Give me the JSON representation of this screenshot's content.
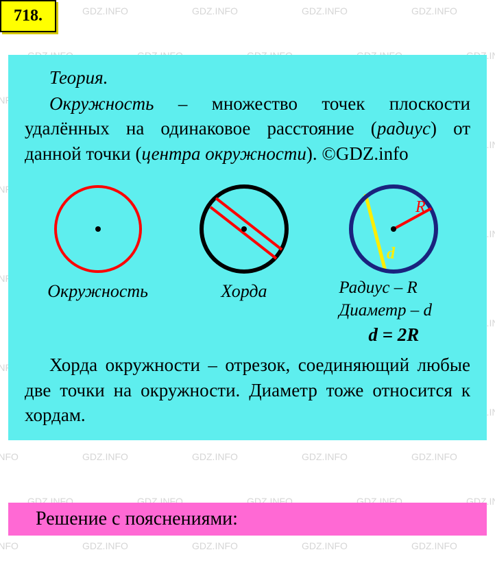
{
  "watermark_text": "GDZ.INFO",
  "problem_number": "718.",
  "theory": {
    "title": "Теория.",
    "definition_prefix": "Окружность",
    "definition_body": " – множество точек плоскости удалённых на одинаковое рас­стояние (",
    "term_radius": "радиус",
    "definition_mid": ") от данной точки (",
    "term_center": "цен­тра окружности",
    "definition_suffix": "). ©GDZ.info"
  },
  "diagrams": {
    "circle1": {
      "label": "Окружность",
      "stroke_color": "#ff0000",
      "stroke_width": 4,
      "radius": 62,
      "center_dot": "#000000"
    },
    "circle2": {
      "label": "Хорда",
      "stroke_color": "#000000",
      "stroke_width": 6,
      "radius": 62,
      "chord_color": "#ff0000",
      "chord_width": 4
    },
    "circle3": {
      "label_line1": "Радиус – R",
      "label_line2": "Диаметр – d",
      "formula": "d = 2R",
      "stroke_color": "#1a237e",
      "stroke_width": 6,
      "radius": 62,
      "radius_line_color": "#ff0000",
      "diameter_line_color": "#ffee00",
      "r_text": "R",
      "d_text": "d"
    }
  },
  "chord_definition": {
    "term": "Хорда",
    "body": " окружности – отрезок, соеди­няющий любые две точки на окружно­сти. Диаметр тоже относится к хордам."
  },
  "solution_title": "Решение с пояснениями:",
  "colors": {
    "panel_bg": "#5eeeee",
    "badge_bg": "#ffff00",
    "solution_bg": "#ff69d4"
  }
}
